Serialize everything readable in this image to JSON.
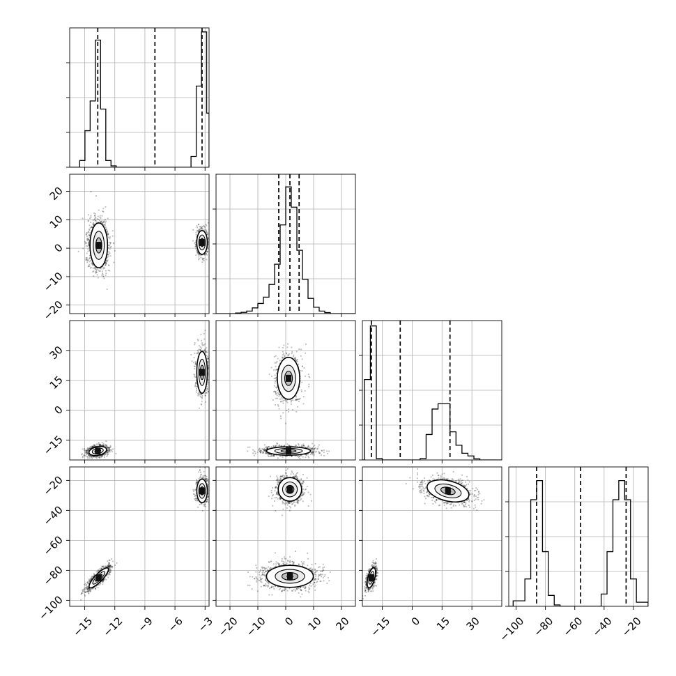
{
  "chart_data": {
    "type": "corner",
    "parameters": 4,
    "grid": true,
    "axes": [
      {
        "xlim": [
          -16.5,
          -2.6
        ],
        "xticks": [
          -15,
          -12,
          -9,
          -6,
          -3
        ]
      },
      {
        "xlim": [
          -25,
          25
        ],
        "xticks": [
          -20,
          -10,
          0,
          10,
          20
        ]
      },
      {
        "xlim": [
          -25,
          45
        ],
        "xticks": [
          -15,
          0,
          15,
          30
        ]
      },
      {
        "xlim": [
          -105,
          -10
        ],
        "xticks": [
          -100,
          -80,
          -60,
          -40,
          -20
        ]
      }
    ],
    "row_axes": [
      {
        "ylim": [
          -23,
          26
        ],
        "yticks": [
          -20,
          -10,
          0,
          10,
          20
        ]
      },
      {
        "ylim": [
          -25,
          45
        ],
        "yticks": [
          -15,
          0,
          15,
          30
        ]
      },
      {
        "ylim": [
          -104,
          -11
        ],
        "yticks": [
          -100,
          -80,
          -60,
          -40,
          -20
        ]
      }
    ],
    "histograms": [
      {
        "param": 0,
        "quantiles": [
          -13.7,
          -8.0,
          -3.3
        ],
        "bins": [
          [
            -15.5,
            -14.98,
            0.05
          ],
          [
            -14.98,
            -14.46,
            0.27
          ],
          [
            -14.46,
            -13.94,
            0.49
          ],
          [
            -13.94,
            -13.42,
            0.94
          ],
          [
            -13.42,
            -12.9,
            0.43
          ],
          [
            -12.9,
            -12.38,
            0.05
          ],
          [
            -12.38,
            -11.86,
            0.01
          ],
          [
            -4.4,
            -3.88,
            0.08
          ],
          [
            -3.88,
            -3.36,
            0.6
          ],
          [
            -3.36,
            -2.84,
            1.0
          ],
          [
            -2.84,
            -2.6,
            0.4
          ]
        ],
        "ymax": 1.03
      },
      {
        "param": 1,
        "quantiles": [
          -2.5,
          1.5,
          4.8
        ],
        "bins": [
          [
            -18,
            -16,
            0.005
          ],
          [
            -16,
            -14,
            0.01
          ],
          [
            -14,
            -12,
            0.02
          ],
          [
            -12,
            -10,
            0.045
          ],
          [
            -10,
            -8,
            0.08
          ],
          [
            -8,
            -6,
            0.13
          ],
          [
            -6,
            -4,
            0.23
          ],
          [
            -4,
            -2,
            0.39
          ],
          [
            -2,
            0,
            0.7
          ],
          [
            0,
            2,
            1.0
          ],
          [
            2,
            4,
            0.84
          ],
          [
            4,
            6,
            0.5
          ],
          [
            6,
            8,
            0.27
          ],
          [
            8,
            10,
            0.12
          ],
          [
            10,
            12,
            0.05
          ],
          [
            12,
            14,
            0.02
          ],
          [
            14,
            16,
            0.008
          ]
        ],
        "ymax": 1.1
      },
      {
        "param": 2,
        "quantiles": [
          -20.5,
          -6.0,
          19.0
        ],
        "bins": [
          [
            -24,
            -21,
            0.6
          ],
          [
            -21,
            -18,
            1.0
          ],
          [
            -18,
            -15,
            0.01
          ],
          [
            4,
            7,
            0.01
          ],
          [
            7,
            10,
            0.19
          ],
          [
            10,
            13,
            0.38
          ],
          [
            13,
            16,
            0.42
          ],
          [
            16,
            19,
            0.42
          ],
          [
            19,
            22,
            0.21
          ],
          [
            22,
            25,
            0.11
          ],
          [
            25,
            28,
            0.05
          ],
          [
            28,
            31,
            0.03
          ],
          [
            31,
            34,
            0.008
          ]
        ],
        "ymax": 1.04
      },
      {
        "param": 3,
        "quantiles": [
          -86,
          -56,
          -25
        ],
        "bins": [
          [
            -102,
            -98,
            0.04
          ],
          [
            -98,
            -94,
            0.04
          ],
          [
            -94,
            -90,
            0.2
          ],
          [
            -90,
            -86,
            0.78
          ],
          [
            -86,
            -82,
            0.92
          ],
          [
            -82,
            -78,
            0.4
          ],
          [
            -78,
            -74,
            0.08
          ],
          [
            -74,
            -70,
            0.01
          ],
          [
            -42,
            -38,
            0.09
          ],
          [
            -38,
            -34,
            0.4
          ],
          [
            -34,
            -30,
            0.78
          ],
          [
            -30,
            -26,
            0.92
          ],
          [
            -26,
            -22,
            0.78
          ],
          [
            -22,
            -18,
            0.2
          ],
          [
            -18,
            -14,
            0.03
          ],
          [
            -14,
            -10,
            0.03
          ]
        ],
        "ymax": 1.02
      }
    ],
    "scatter_panels": [
      {
        "x": 0,
        "y": 1,
        "clusters": [
          {
            "cx": -13.6,
            "cy": 1.0,
            "sx": 0.5,
            "sy": 4.5,
            "rho": 0.0,
            "n": 1300
          },
          {
            "cx": -3.3,
            "cy": 2.0,
            "sx": 0.3,
            "sy": 2.4,
            "rho": 0.0,
            "n": 600
          }
        ]
      },
      {
        "x": 0,
        "y": 2,
        "clusters": [
          {
            "cx": -13.7,
            "cy": -20.5,
            "sx": 0.5,
            "sy": 1.3,
            "rho": 0.3,
            "n": 1300
          },
          {
            "cx": -3.3,
            "cy": 19.0,
            "sx": 0.3,
            "sy": 6.0,
            "rho": 0.0,
            "n": 600
          }
        ]
      },
      {
        "x": 0,
        "y": 3,
        "clusters": [
          {
            "cx": -13.6,
            "cy": -85.0,
            "sx": 0.55,
            "sy": 3.8,
            "rho": 0.85,
            "n": 1300
          },
          {
            "cx": -3.3,
            "cy": -27.0,
            "sx": 0.3,
            "sy": 4.5,
            "rho": 0.0,
            "n": 600
          }
        ]
      },
      {
        "x": 1,
        "y": 2,
        "clusters": [
          {
            "cx": 1.0,
            "cy": 16.0,
            "sx": 2.3,
            "sy": 6.0,
            "rho": 0.0,
            "n": 900
          },
          {
            "cx": 1.0,
            "cy": -20.5,
            "sx": 4.5,
            "sy": 1.2,
            "rho": 0.0,
            "n": 1300
          }
        ]
      },
      {
        "x": 1,
        "y": 3,
        "clusters": [
          {
            "cx": 1.5,
            "cy": -26.0,
            "sx": 2.4,
            "sy": 4.5,
            "rho": 0.0,
            "n": 900
          },
          {
            "cx": 1.5,
            "cy": -84.0,
            "sx": 4.8,
            "sy": 4.2,
            "rho": 0.0,
            "n": 1300
          }
        ]
      },
      {
        "x": 2,
        "y": 3,
        "clusters": [
          {
            "cx": 18.0,
            "cy": -27.0,
            "sx": 6.0,
            "sy": 4.2,
            "rho": -0.35,
            "n": 1100
          },
          {
            "cx": -20.5,
            "cy": -85.0,
            "sx": 1.2,
            "sy": 3.8,
            "rho": 0.55,
            "n": 1000
          }
        ]
      }
    ]
  }
}
